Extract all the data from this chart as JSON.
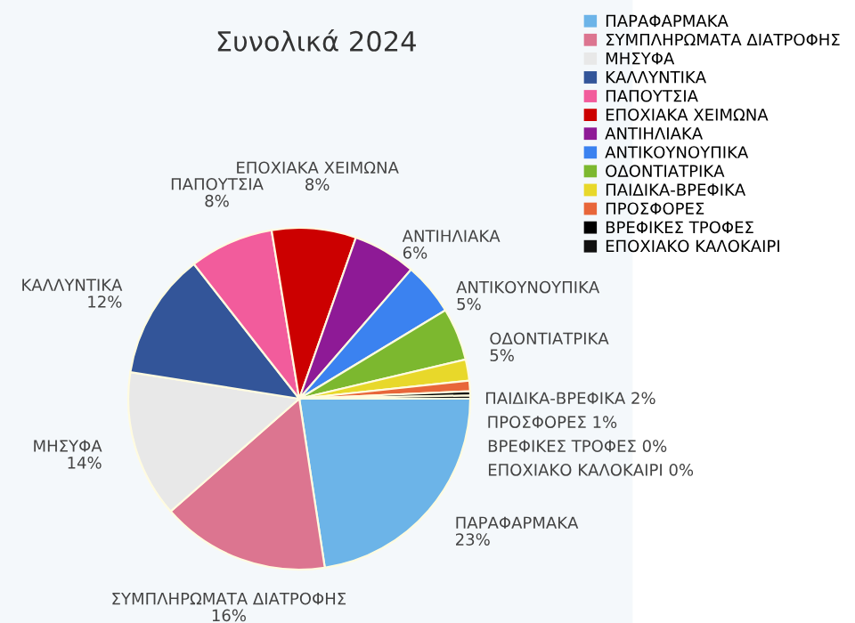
{
  "chart_data": {
    "type": "pie",
    "title": "Συνολικά 2024",
    "categories": [
      "ΠΑΡΑΦΑΡΜΑΚΑ",
      "ΣΥΜΠΛΗΡΩΜΑΤΑ ΔΙΑΤΡΟΦΗΣ",
      "ΜΗΣΥΦΑ",
      "ΚΑΛΛΥΝΤΙΚΑ",
      "ΠΑΠΟΥΤΣΙΑ",
      "ΕΠΟΧΙΑΚΑ ΧΕΙΜΩΝΑ",
      "ΑΝΤΙΗΛΙΑΚΑ",
      "ΑΝΤΙΚΟΥΝΟΥΠΙΚΑ",
      "ΟΔΟΝΤΙΑΤΡΙΚΑ",
      "ΠΑΙΔΙΚΑ-ΒΡΕΦΙΚΑ",
      "ΠΡΟΣΦΟΡΕΣ",
      "ΒΡΕΦΙΚΕΣ ΤΡΟΦΕΣ",
      "ΕΠΟΧΙΑΚΟ ΚΑΛΟΚΑΙΡΙ"
    ],
    "values": [
      22.7,
      16,
      14,
      12,
      8,
      8,
      6,
      5,
      5,
      2,
      1,
      0.4,
      0.3
    ],
    "value_labels": [
      "23%",
      "16%",
      "14%",
      "12%",
      "8%",
      "8%",
      "6%",
      "5%",
      "5%",
      "2%",
      "1%",
      "0%",
      "0%"
    ],
    "colors": [
      "#6cb4e8",
      "#dc7590",
      "#e8e8e8",
      "#335599",
      "#f25c9c",
      "#cc0000",
      "#8e1a96",
      "#3b82f0",
      "#7cb82f",
      "#e8d82a",
      "#e8663a",
      "#000000",
      "#111111"
    ],
    "legend": "top right"
  }
}
